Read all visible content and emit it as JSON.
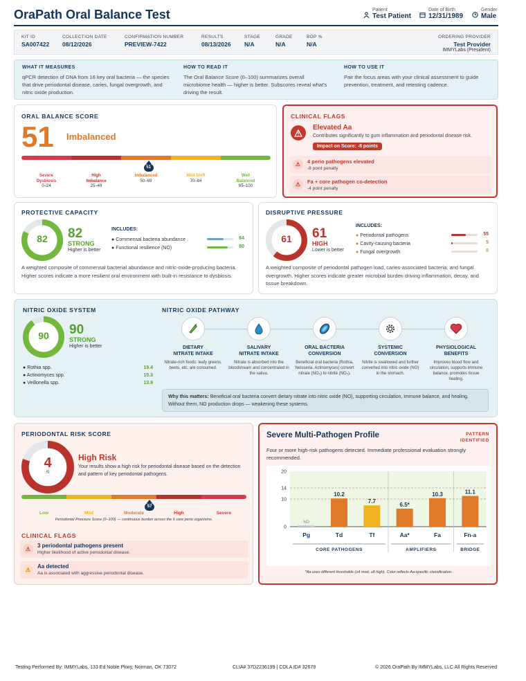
{
  "header": {
    "title": "OraPath Oral Balance Test",
    "patient_label": "Patient",
    "patient": "Test Patient",
    "dob_label": "Date of Birth",
    "dob": "12/31/1989",
    "gender_label": "Gender",
    "gender": "Male"
  },
  "meta": [
    {
      "label": "KIT ID",
      "value": "SA007422"
    },
    {
      "label": "COLLECTION DATE",
      "value": "08/12/2026"
    },
    {
      "label": "CONFIRMATION NUMBER",
      "value": "PREVIEW-7422"
    },
    {
      "label": "RESULTS",
      "value": "08/13/2026"
    },
    {
      "label": "STAGE",
      "value": "N/A"
    },
    {
      "label": "GRADE",
      "value": "N/A"
    },
    {
      "label": "BOP %",
      "value": "N/A"
    }
  ],
  "provider": {
    "label": "ORDERING PROVIDER",
    "name": "Test Provider",
    "org": "IMMYLabs (President)"
  },
  "howto": [
    {
      "h": "WHAT IT MEASURES",
      "t": "qPCR detection of DNA from 16 key oral bacteria — the species that drive periodontal disease, caries, fungal overgrowth, and nitric oxide production."
    },
    {
      "h": "HOW TO READ IT",
      "t": "The Oral Balance Score (0–100) summarizes overall microbiome health — higher is better. Subscores reveal what's driving the result."
    },
    {
      "h": "HOW TO USE IT",
      "t": "Pair the focus areas with your clinical assessment to guide prevention, treatment, and retesting cadence."
    }
  ],
  "balance": {
    "title": "ORAL BALANCE SCORE",
    "score": "51",
    "status": "Imbalanced",
    "marker": "51",
    "marker_value": 51,
    "segments": [
      {
        "name": "Severe",
        "sub": "Dysbiosis",
        "range": "0–24",
        "color": "#d63a4a"
      },
      {
        "name": "High",
        "sub": "Imbalance",
        "range": "25–49",
        "color": "#b8332c"
      },
      {
        "name": "Imbalanced",
        "sub": "",
        "range": "50–69",
        "color": "#e0792a"
      },
      {
        "name": "Mild Shift",
        "sub": "",
        "range": "70–84",
        "color": "#f0b323"
      },
      {
        "name": "Well",
        "sub": "Balanced",
        "range": "85–100",
        "color": "#73b83c"
      }
    ]
  },
  "clinical": {
    "title": "CLINICAL FLAGS",
    "main_title": "Elevated Aa",
    "main_desc": "Contributes significantly to gum inflammation and periodontal disease risk.",
    "impact": "Impact on Score: -8 points",
    "items": [
      {
        "title": "4 perio pathogens elevated",
        "sub": "-8 point penalty"
      },
      {
        "title": "Fa + core pathogen co-detection",
        "sub": "-4 point penalty"
      }
    ]
  },
  "protective": {
    "title": "PROTECTIVE CAPACITY",
    "ring": "82",
    "score": "82",
    "ring_value": 82,
    "status": "STRONG",
    "hint": "Higher is better",
    "inc_label": "INCLUDES:",
    "items": [
      {
        "label": "Commensal bacteria abundance",
        "value": "64",
        "pct": 64
      },
      {
        "label": "Functional resilience (NO)",
        "value": "80",
        "pct": 80
      }
    ],
    "desc": "A weighted composite of commensal bacterial abundance and nitric-oxide-producing bacteria. Higher scores indicate a more resilient oral environment with built-in resistance to dysbiosis."
  },
  "disruptive": {
    "title": "DISRUPTIVE PRESSURE",
    "ring": "61",
    "score": "61",
    "ring_value": 61,
    "status": "HIGH",
    "hint": "Lower is better",
    "inc_label": "INCLUDES:",
    "items": [
      {
        "label": "Periodontal pathogens",
        "value": "55",
        "pct": 55
      },
      {
        "label": "Cavity-causing bacteria",
        "value": "5",
        "pct": 5
      },
      {
        "label": "Fungal overgrowth",
        "value": "0",
        "pct": 0
      }
    ],
    "desc": "A weighted composite of periodontal pathogen load, caries-associated bacteria, and fungal overgrowth. Higher scores indicate greater microbial burden driving inflammation, decay, and tissue breakdown."
  },
  "nitric": {
    "title": "NITRIC OXIDE SYSTEM",
    "ring": "90",
    "score": "90",
    "ring_value": 90,
    "status": "STRONG",
    "hint": "Higher is better",
    "species": [
      {
        "name": "Rothia spp.",
        "value": "19.4"
      },
      {
        "name": "Actinomyces spp.",
        "value": "15.3"
      },
      {
        "name": "Veillonella spp.",
        "value": "13.9"
      }
    ]
  },
  "pathway": {
    "title": "NITRIC OXIDE PATHWAY",
    "steps": [
      {
        "icon": "vegetable-icon",
        "t1": "DIETARY",
        "t2": "NITRATE INTAKE",
        "d": "Nitrate-rich foods: leafy greens, beets, etc. are consumed."
      },
      {
        "icon": "saliva-drop-icon",
        "t1": "SALIVARY",
        "t2": "NITRATE INTAKE",
        "d": "Nitrate is absorbed into the bloodstream and concentrated in the saliva."
      },
      {
        "icon": "bacteria-icon",
        "t1": "ORAL BACTERIA",
        "t2": "CONVERSION",
        "d": "Beneficial oral bacteria (Rothia, Neisseria, Actinomyces) convert nitrate (NO₃) to nitrite (NO₂)."
      },
      {
        "icon": "gear-icon",
        "t1": "SYSTEMIC",
        "t2": "CONVERSION",
        "d": "Nitrite is swallowed and further converted into nitric oxide (NO) in the stomach."
      },
      {
        "icon": "heart-icon",
        "t1": "PHYSIOLOGICAL",
        "t2": "BENEFITS",
        "d": "Improves blood flow and circulation, supports immune balance, promotes tissue healing."
      }
    ],
    "why_label": "Why this matters:",
    "why_text": "Beneficial oral bacteria convert dietary nitrate into nitric oxide (NO), supporting circulation, immune balance, and healing. Without them, NO production drops — weakening these systems."
  },
  "perio": {
    "title": "PERIODONTAL RISK SCORE",
    "score": "4",
    "denom": "/5",
    "ring_value": 4,
    "status": "High Risk",
    "desc": "Your results show a high risk for periodontal disease based on the detection and pattern of key periodontal pathogens.",
    "marker": "57",
    "marker_value": 57,
    "segments": [
      {
        "name": "Low",
        "color": "#73b83c"
      },
      {
        "name": "Mild",
        "color": "#f0b323"
      },
      {
        "name": "Moderate",
        "color": "#e0792a"
      },
      {
        "name": "High",
        "color": "#b8332c"
      },
      {
        "name": "Severe",
        "color": "#d63a4a"
      }
    ],
    "note": "Periodontal Pressure Score (0–100) — continuous burden across the 6 core perio organisms.",
    "flags_title": "CLINICAL FLAGS",
    "flags": [
      {
        "title": "3 periodontal pathogens present",
        "sub": "Higher likelihood of active periodontal disease."
      },
      {
        "title": "Aa detected",
        "sub": "Aa is associated with aggressive periodontal disease."
      }
    ]
  },
  "profile": {
    "title": "Severe Multi-Pathogen Profile",
    "tag1": "PATTERN",
    "tag2": "IDENTIFIED",
    "desc": "Four or more high-risk pathogens detected. Immediate professional evaluation strongly recommended.",
    "groups": [
      {
        "name": "CORE PATHOGENS",
        "start": 0,
        "end": 2
      },
      {
        "name": "AMPLIFIERS",
        "start": 3,
        "end": 4
      },
      {
        "name": "BRIDGE",
        "start": 5,
        "end": 5
      }
    ],
    "footnote": "*Aa uses different thresholds (≥4 mod, ≥8 high). Color reflects Aa-specific classification."
  },
  "chart_data": {
    "type": "bar",
    "categories": [
      "Pg",
      "Td",
      "Tf",
      "Aa*",
      "Fa",
      "Fn-a"
    ],
    "values": [
      0,
      10.2,
      7.7,
      6.5,
      10.3,
      11.1
    ],
    "labels": [
      "ND",
      "10.2",
      "7.7",
      "6.5*",
      "10.3",
      "11.1"
    ],
    "colors": [
      "#c9d3dc",
      "#e0792a",
      "#f0b323",
      "#e0792a",
      "#e0792a",
      "#e0792a"
    ],
    "ylim": [
      0,
      20
    ],
    "yticks": [
      0,
      10,
      14,
      20
    ],
    "threshold_lines": [
      10,
      14
    ]
  },
  "footer": {
    "left": "Testing Performed By: IMMYLabs, 133 Ed Noble Pkwy, Norman, OK 73072",
    "mid": "CLIA# 37D2236199 | COLA ID# 32679",
    "right": "© 2026 OraPath By IMMYLabs, LLC All Rights Reserved"
  }
}
